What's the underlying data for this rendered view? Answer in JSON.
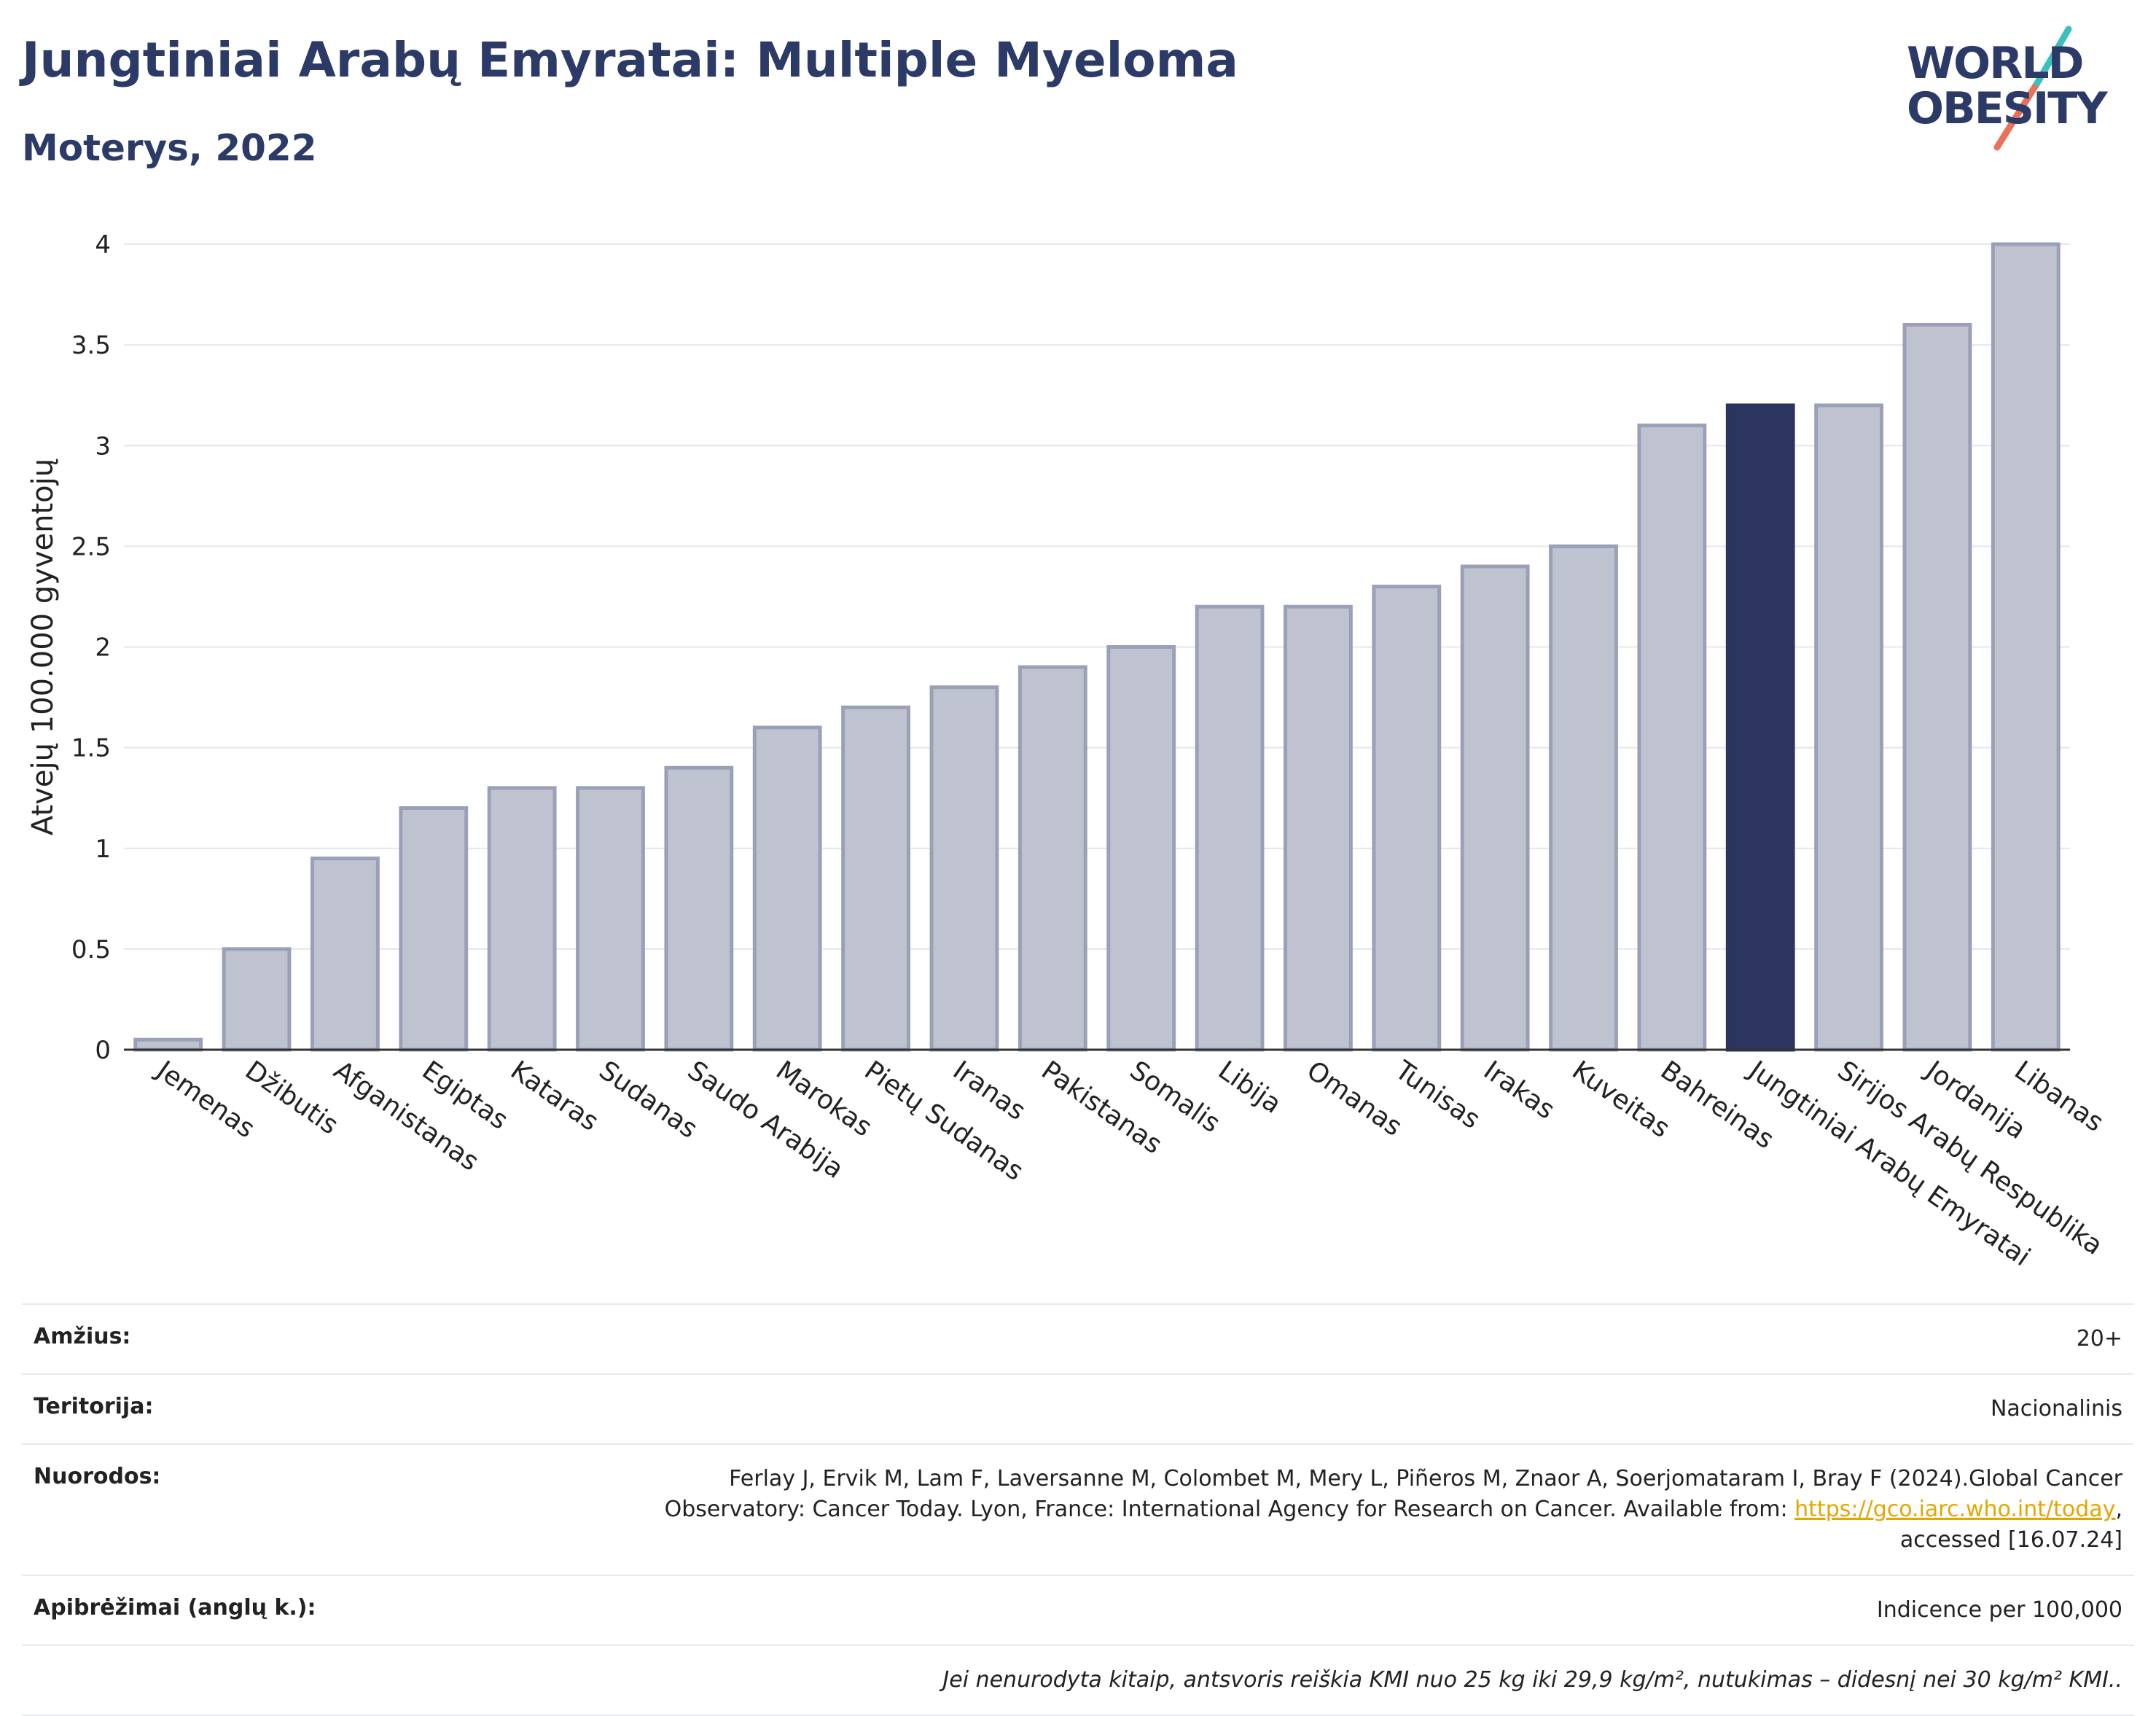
{
  "header": {
    "title": "Jungtiniai Arabų Emyratai: Multiple Myeloma",
    "subtitle": "Moterys, 2022"
  },
  "logo": {
    "line1": "WORLD",
    "line2": "OBESITY",
    "accent_colors": [
      "#3bbfbf",
      "#e8715a"
    ]
  },
  "chart_data": {
    "type": "bar",
    "title": "Jungtiniai Arabų Emyratai: Multiple Myeloma",
    "subtitle": "Moterys, 2022",
    "ylabel": "Atvejų 100.000 gyventojų",
    "xlabel": "",
    "ylim": [
      0,
      4
    ],
    "yticks": [
      0,
      0.5,
      1,
      1.5,
      2,
      2.5,
      3,
      3.5,
      4
    ],
    "ytick_labels": [
      "0",
      "0.5",
      "1",
      "1.5",
      "2",
      "2.5",
      "3",
      "3.5",
      "4"
    ],
    "grid": true,
    "categories": [
      "Jemenas",
      "Džibutis",
      "Afganistanas",
      "Egiptas",
      "Kataras",
      "Sudanas",
      "Saudo Arabija",
      "Marokas",
      "Pietų Sudanas",
      "Iranas",
      "Pakistanas",
      "Somalis",
      "Libija",
      "Omanas",
      "Tunisas",
      "Irakas",
      "Kuveitas",
      "Bahreinas",
      "Jungtiniai Arabų Emyratai",
      "Sirijos Arabų Respublika",
      "Jordanija",
      "Libanas"
    ],
    "values": [
      0.05,
      0.5,
      0.95,
      1.2,
      1.3,
      1.3,
      1.4,
      1.6,
      1.7,
      1.8,
      1.9,
      2.0,
      2.2,
      2.2,
      2.3,
      2.4,
      2.5,
      3.1,
      3.2,
      3.2,
      3.6,
      4.0
    ],
    "highlight": "Jungtiniai Arabų Emyratai",
    "colors": {
      "bar": "#bfc3d0",
      "bar_border": "#9aa0b8",
      "highlight": "#2b3560",
      "grid": "#e5e7eb",
      "axis": "#333333"
    }
  },
  "meta": {
    "age_label": "Amžius:",
    "age_value": "20+",
    "territory_label": "Teritorija:",
    "territory_value": "Nacionalinis",
    "refs_label": "Nuorodos:",
    "refs_line1": "Ferlay J, Ervik M, Lam F, Laversanne M, Colombet M, Mery L, Piñeros M, Znaor A, Soerjomataram I, Bray F (2024).Global Cancer",
    "refs_line2": "Observatory: Cancer Today. Lyon, France: International Agency for Research on Cancer. Available from:",
    "refs_link": "https://gco.iarc.who.int/today",
    "refs_line3": "accessed [16.07.24]",
    "definitions_label": "Apibrėžimai (anglų k.):",
    "definitions_value": "Indicence per 100,000",
    "note": "Jei nenurodyta kitaip, antsvoris reiškia KMI nuo 25 kg iki 29,9 kg/m², nutukimas – didesnį nei 30 kg/m² KMI.."
  }
}
